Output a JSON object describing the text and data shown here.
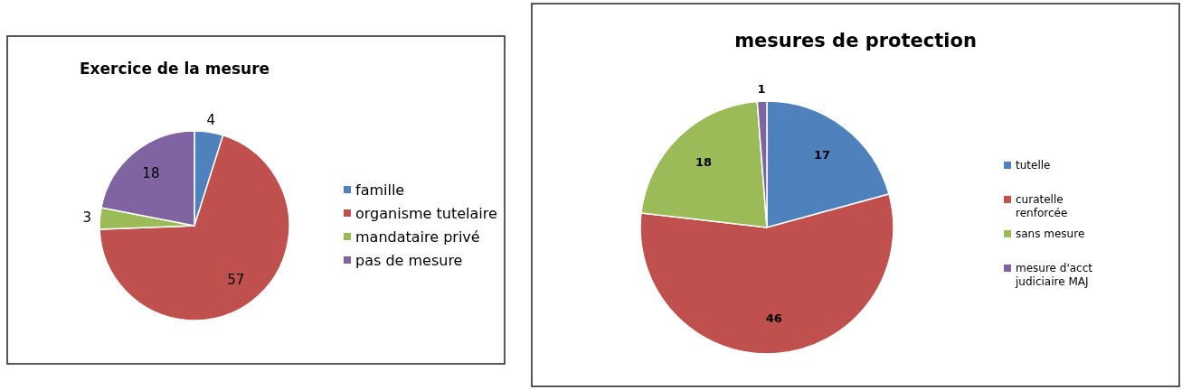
{
  "chart_data": [
    {
      "type": "pie",
      "title": "Exercice de la mesure",
      "categories": [
        "famille",
        "organisme tutelaire",
        "mandataire privé",
        "pas de mesure"
      ],
      "values": [
        4,
        57,
        3,
        18
      ],
      "colors": [
        "#4f81bd",
        "#c0504d",
        "#9bbb59",
        "#8064a2"
      ],
      "data_labels": true,
      "legend": "right"
    },
    {
      "type": "pie",
      "title": "mesures de protection",
      "categories": [
        "tutelle",
        "curatelle renforcée",
        "sans mesure",
        "mesure d'acct judiciaire MAJ"
      ],
      "values": [
        17,
        46,
        18,
        1
      ],
      "colors": [
        "#4f81bd",
        "#c0504d",
        "#9bbb59",
        "#8064a2"
      ],
      "data_labels": true,
      "legend": "right"
    }
  ]
}
